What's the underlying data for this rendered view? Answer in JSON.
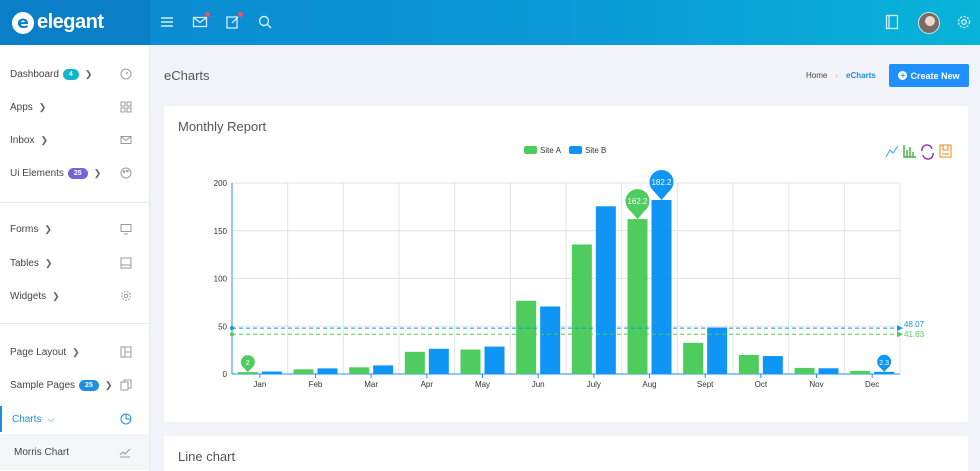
{
  "brand": {
    "mark": "e",
    "name": "elegant"
  },
  "sidebar": {
    "items": [
      {
        "label": "Dashboard",
        "badge": "4",
        "badge_color": "#12b5c9"
      },
      {
        "label": "Apps"
      },
      {
        "label": "Inbox"
      },
      {
        "label": "Ui Elements",
        "badge": "25",
        "badge_color": "#7563d9"
      },
      {
        "label": "Forms"
      },
      {
        "label": "Tables"
      },
      {
        "label": "Widgets"
      },
      {
        "label": "Page Layout"
      },
      {
        "label": "Sample Pages",
        "badge": "25",
        "badge_color": "#1e8fe0"
      },
      {
        "label": "Charts"
      }
    ],
    "sub_item": "Morris Chart"
  },
  "page": {
    "title": "eCharts",
    "breadcrumb": {
      "home": "Home",
      "current": "eCharts"
    },
    "create_button": "Create New"
  },
  "cards": {
    "monthly": "Monthly Report",
    "line": "Line chart"
  },
  "chart_data": {
    "type": "bar",
    "legend": [
      "Site A",
      "Site B"
    ],
    "categories": [
      "Jan",
      "Feb",
      "Mar",
      "Apr",
      "May",
      "Jun",
      "July",
      "Aug",
      "Sept",
      "Oct",
      "Nov",
      "Dec"
    ],
    "series": [
      {
        "name": "Site A",
        "color": "#4fcc5e",
        "values": [
          2.0,
          4.9,
          7.0,
          23.2,
          25.6,
          76.7,
          135.6,
          162.2,
          32.6,
          20.0,
          6.4,
          3.3
        ]
      },
      {
        "name": "Site B",
        "color": "#0e95f5",
        "values": [
          2.6,
          5.9,
          9.0,
          26.4,
          28.7,
          70.7,
          175.6,
          182.2,
          48.7,
          18.8,
          6.0,
          2.3
        ]
      }
    ],
    "markers": [
      {
        "series": 0,
        "index": 0,
        "label": "2"
      },
      {
        "series": 0,
        "index": 7,
        "label": "162.2"
      },
      {
        "series": 1,
        "index": 7,
        "label": "182.2"
      },
      {
        "series": 1,
        "index": 11,
        "label": "2.3"
      }
    ],
    "average_lines": [
      {
        "series": 1,
        "value": 48.07,
        "label": "48.07"
      },
      {
        "series": 0,
        "value": 41.63,
        "label": "41.63"
      }
    ],
    "y_ticks": [
      0,
      50,
      100,
      150,
      200
    ],
    "ylim": [
      0,
      200
    ],
    "grid": true,
    "legend_position": "top-center",
    "toolbox_icons": [
      "line-chart-icon",
      "bar-chart-icon",
      "restore-icon",
      "save-image-icon"
    ]
  }
}
